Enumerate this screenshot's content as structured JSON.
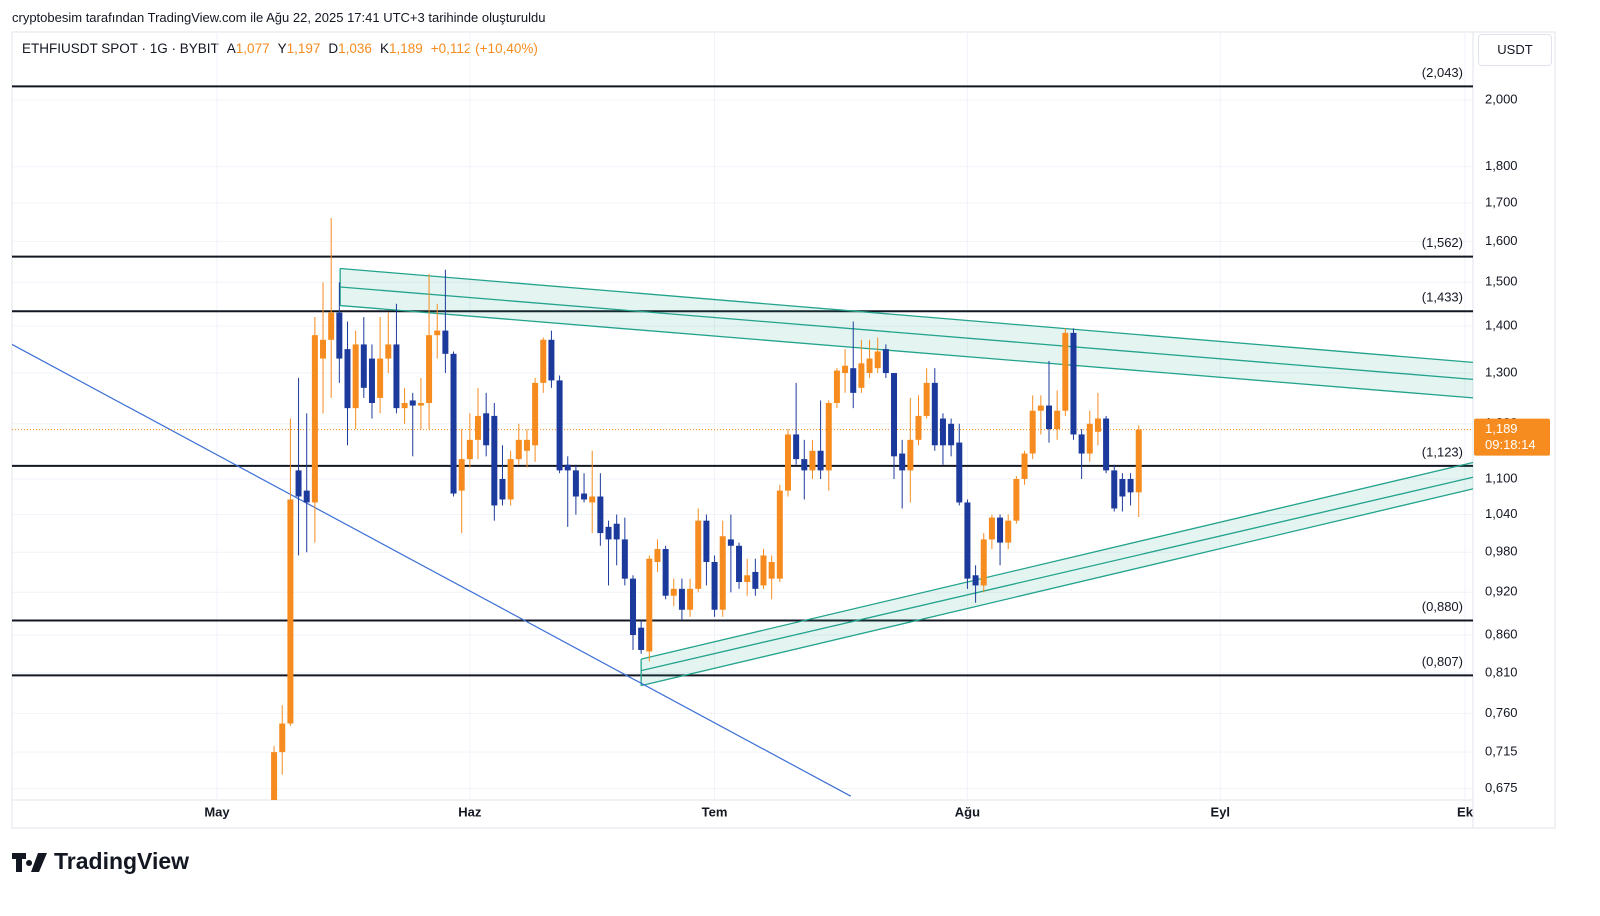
{
  "header": {
    "caption": "cryptobesim tarafından TradingView.com ile Ağu 22, 2025 17:41 UTC+3 tarihinde oluşturuldu"
  },
  "legend": {
    "symbol": "ETHFIUSDT SPOT · 1G · BYBIT",
    "fields": [
      {
        "key": "A",
        "text": "1,077"
      },
      {
        "key": "Y",
        "text": "1,197"
      },
      {
        "key": "D",
        "text": "1,036"
      },
      {
        "key": "K",
        "text": "1,189"
      }
    ],
    "change": "+0,112 (+10,40%)"
  },
  "unit": "USDT",
  "logo": "TradingView",
  "chart_data": {
    "type": "candlestick",
    "up_color": "#f68c1f",
    "down_color": "#1c3a9c",
    "log_scale": true,
    "grid": true,
    "xlim": [
      -25.13,
      153.98
    ],
    "xticks": [
      {
        "value": 0,
        "label": "May"
      },
      {
        "value": 31,
        "label": "Haz"
      },
      {
        "value": 61,
        "label": "Tem"
      },
      {
        "value": 92,
        "label": "Ağu"
      },
      {
        "value": 123,
        "label": "Eyl"
      },
      {
        "value": 153,
        "label": "Ek"
      }
    ],
    "ylim": [
      0.663,
      2.226
    ],
    "yticks": [
      {
        "value": 2,
        "label": "2,000"
      },
      {
        "value": 1.8,
        "label": "1,800"
      },
      {
        "value": 1.7,
        "label": "1,700"
      },
      {
        "value": 1.6,
        "label": "1,600"
      },
      {
        "value": 1.5,
        "label": "1,500"
      },
      {
        "value": 1.4,
        "label": "1,400"
      },
      {
        "value": 1.3,
        "label": "1,300"
      },
      {
        "value": 1.2,
        "label": "1,200"
      },
      {
        "value": 1.1,
        "label": "1,100"
      },
      {
        "value": 1.04,
        "label": "1,040"
      },
      {
        "value": 0.98,
        "label": "0,980"
      },
      {
        "value": 0.92,
        "label": "0,920"
      },
      {
        "value": 0.86,
        "label": "0,860"
      },
      {
        "value": 0.81,
        "label": "0,810"
      },
      {
        "value": 0.76,
        "label": "0,760"
      },
      {
        "value": 0.715,
        "label": "0,715"
      },
      {
        "value": 0.675,
        "label": "0,675"
      }
    ],
    "x": [
      7,
      8,
      9,
      10,
      11,
      12,
      13,
      14,
      15,
      16,
      17,
      18,
      19,
      20,
      21,
      22,
      23,
      24,
      25,
      26,
      27,
      28,
      29,
      30,
      31,
      32,
      33,
      34,
      35,
      36,
      37,
      38,
      39,
      40,
      41,
      42,
      43,
      44,
      45,
      46,
      47,
      48,
      49,
      50,
      51,
      52,
      53,
      54,
      55,
      56,
      57,
      58,
      59,
      60,
      61,
      62,
      63,
      64,
      65,
      66,
      67,
      68,
      69,
      70,
      71,
      72,
      73,
      74,
      75,
      76,
      77,
      78,
      79,
      80,
      81,
      82,
      83,
      84,
      85,
      86,
      87,
      88,
      89,
      90,
      91,
      92,
      93,
      94,
      95,
      96,
      97,
      98,
      99,
      100,
      101,
      102,
      103,
      104,
      105,
      106,
      107,
      108,
      109,
      110,
      111,
      112,
      113
    ],
    "open": [
      0.655,
      0.715,
      0.748,
      1.115,
      1.08,
      1.06,
      1.33,
      1.37,
      1.43,
      1.35,
      1.23,
      1.36,
      1.33,
      1.25,
      1.33,
      1.36,
      1.23,
      1.245,
      1.235,
      1.24,
      1.38,
      1.39,
      1.34,
      1.08,
      1.135,
      1.17,
      1.22,
      1.215,
      1.1,
      1.065,
      1.135,
      1.15,
      1.16,
      1.28,
      1.37,
      1.285,
      1.125,
      1.115,
      1.075,
      1.06,
      1.07,
      1.02,
      1.025,
      1.0,
      0.94,
      0.87,
      0.838,
      0.965,
      0.985,
      0.915,
      0.925,
      0.895,
      0.925,
      1.03,
      0.965,
      0.895,
      1.0,
      0.99,
      0.935,
      0.95,
      0.93,
      0.94,
      0.94,
      1.08,
      1.18,
      1.135,
      1.115,
      1.15,
      1.115,
      1.24,
      1.3,
      1.31,
      1.27,
      1.3,
      1.31,
      1.35,
      1.3,
      1.145,
      1.115,
      1.17,
      1.215,
      1.28,
      1.21,
      1.2,
      1.165,
      1.06,
      0.945,
      0.93,
      1.0,
      1.035,
      0.995,
      1.03,
      1.1,
      1.145,
      1.225,
      1.235,
      1.19,
      1.225,
      1.385,
      1.18,
      1.145,
      1.185,
      1.21,
      1.115,
      1.1,
      1.1,
      1.077
    ],
    "high": [
      0.722,
      0.77,
      1.21,
      1.29,
      1.22,
      1.42,
      1.5,
      1.66,
      1.5,
      1.41,
      1.39,
      1.42,
      1.36,
      1.42,
      1.43,
      1.45,
      1.27,
      1.26,
      1.29,
      1.52,
      1.45,
      1.53,
      1.345,
      1.19,
      1.22,
      1.27,
      1.26,
      1.24,
      1.16,
      1.15,
      1.2,
      1.19,
      1.29,
      1.375,
      1.39,
      1.295,
      1.14,
      1.125,
      1.11,
      1.15,
      1.11,
      1.03,
      1.04,
      1.035,
      0.945,
      0.88,
      0.975,
      1.0,
      0.99,
      0.94,
      0.94,
      0.94,
      1.05,
      1.04,
      0.975,
      1.03,
      1.04,
      0.995,
      0.97,
      0.97,
      0.985,
      0.975,
      1.09,
      1.19,
      1.28,
      1.17,
      1.17,
      1.245,
      1.245,
      1.31,
      1.35,
      1.41,
      1.37,
      1.37,
      1.375,
      1.36,
      1.3,
      1.17,
      1.25,
      1.255,
      1.31,
      1.31,
      1.22,
      1.21,
      1.2,
      1.065,
      0.96,
      1.01,
      1.04,
      1.04,
      1.04,
      1.105,
      1.15,
      1.255,
      1.255,
      1.325,
      1.265,
      1.395,
      1.395,
      1.19,
      1.225,
      1.26,
      1.215,
      1.125,
      1.11,
      1.11,
      1.197
    ],
    "low": [
      0.64,
      0.69,
      0.745,
      0.975,
      0.98,
      0.995,
      1.22,
      1.25,
      1.28,
      1.16,
      1.19,
      1.25,
      1.21,
      1.22,
      1.3,
      1.22,
      1.2,
      1.14,
      1.19,
      1.19,
      1.33,
      1.3,
      1.07,
      1.01,
      1.12,
      1.135,
      1.14,
      1.03,
      1.055,
      1.055,
      1.125,
      1.12,
      1.13,
      1.26,
      1.27,
      1.11,
      1.02,
      1.04,
      1.06,
      1.01,
      0.99,
      0.93,
      0.96,
      0.93,
      0.84,
      0.835,
      0.825,
      0.95,
      0.91,
      0.9,
      0.88,
      0.885,
      0.92,
      0.93,
      0.885,
      0.885,
      0.92,
      0.925,
      0.915,
      0.915,
      0.925,
      0.91,
      0.935,
      1.07,
      1.125,
      1.065,
      1.1,
      1.1,
      1.08,
      1.23,
      1.26,
      1.23,
      1.26,
      1.29,
      1.3,
      1.29,
      1.1,
      1.05,
      1.06,
      1.16,
      1.21,
      1.15,
      1.125,
      1.14,
      1.055,
      0.925,
      0.905,
      0.92,
      0.985,
      0.96,
      0.985,
      1.025,
      1.09,
      1.135,
      1.18,
      1.165,
      1.17,
      1.215,
      1.17,
      1.1,
      1.13,
      1.16,
      1.11,
      1.045,
      1.045,
      1.055,
      1.036
    ],
    "close": [
      0.715,
      0.748,
      1.065,
      1.07,
      1.06,
      1.38,
      1.37,
      1.43,
      1.33,
      1.23,
      1.36,
      1.27,
      1.24,
      1.33,
      1.36,
      1.23,
      1.24,
      1.235,
      1.24,
      1.38,
      1.39,
      1.34,
      1.075,
      1.135,
      1.17,
      1.215,
      1.16,
      1.055,
      1.065,
      1.135,
      1.17,
      1.17,
      1.28,
      1.37,
      1.285,
      1.115,
      1.115,
      1.07,
      1.065,
      1.07,
      1.01,
      1.0,
      1.0,
      0.94,
      0.86,
      0.84,
      0.97,
      0.985,
      0.915,
      0.925,
      0.895,
      0.925,
      1.03,
      0.965,
      0.895,
      1.005,
      0.99,
      0.935,
      0.945,
      0.925,
      0.975,
      0.965,
      1.08,
      1.18,
      1.135,
      1.115,
      1.15,
      1.115,
      1.24,
      1.305,
      1.315,
      1.26,
      1.32,
      1.33,
      1.345,
      1.3,
      1.14,
      1.115,
      1.17,
      1.215,
      1.28,
      1.16,
      1.16,
      1.16,
      1.06,
      0.94,
      0.93,
      1.0,
      1.035,
      0.995,
      1.03,
      1.1,
      1.145,
      1.225,
      1.235,
      1.19,
      1.225,
      1.385,
      1.18,
      1.145,
      1.2,
      1.21,
      1.115,
      1.05,
      1.07,
      1.077,
      1.189
    ],
    "levels": [
      {
        "value": 2.043,
        "label": "(2,043)"
      },
      {
        "value": 1.562,
        "label": "(1,562)"
      },
      {
        "value": 1.433,
        "label": "(1,433)"
      },
      {
        "value": 1.123,
        "label": "(1,123)"
      },
      {
        "value": 0.88,
        "label": "(0,880)"
      },
      {
        "value": 0.807,
        "label": "(0,807)"
      }
    ],
    "channels": [
      {
        "color": "#22a38c",
        "lines": [
          {
            "x": [
              15.1,
              153.98
            ],
            "y": [
              1.533,
              1.322
            ]
          },
          {
            "x": [
              15.1,
              153.98
            ],
            "y": [
              1.489,
              1.287
            ]
          },
          {
            "x": [
              15.1,
              153.98
            ],
            "y": [
              1.446,
              1.25
            ]
          }
        ]
      },
      {
        "color": "#22a38c",
        "lines": [
          {
            "x": [
              52,
              153.98
            ],
            "y": [
              0.828,
              1.129
            ]
          },
          {
            "x": [
              52,
              153.98
            ],
            "y": [
              0.813,
              1.103
            ]
          },
          {
            "x": [
              52,
              153.98
            ],
            "y": [
              0.794,
              1.083
            ]
          }
        ]
      }
    ],
    "trend_line": {
      "color": "#3b6fd6",
      "x": [
        -25.13,
        77.7
      ],
      "y": [
        1.36,
        0.667
      ]
    },
    "last_price": {
      "value": 1.189,
      "label": "1,189",
      "countdown": "09:18:14"
    }
  }
}
